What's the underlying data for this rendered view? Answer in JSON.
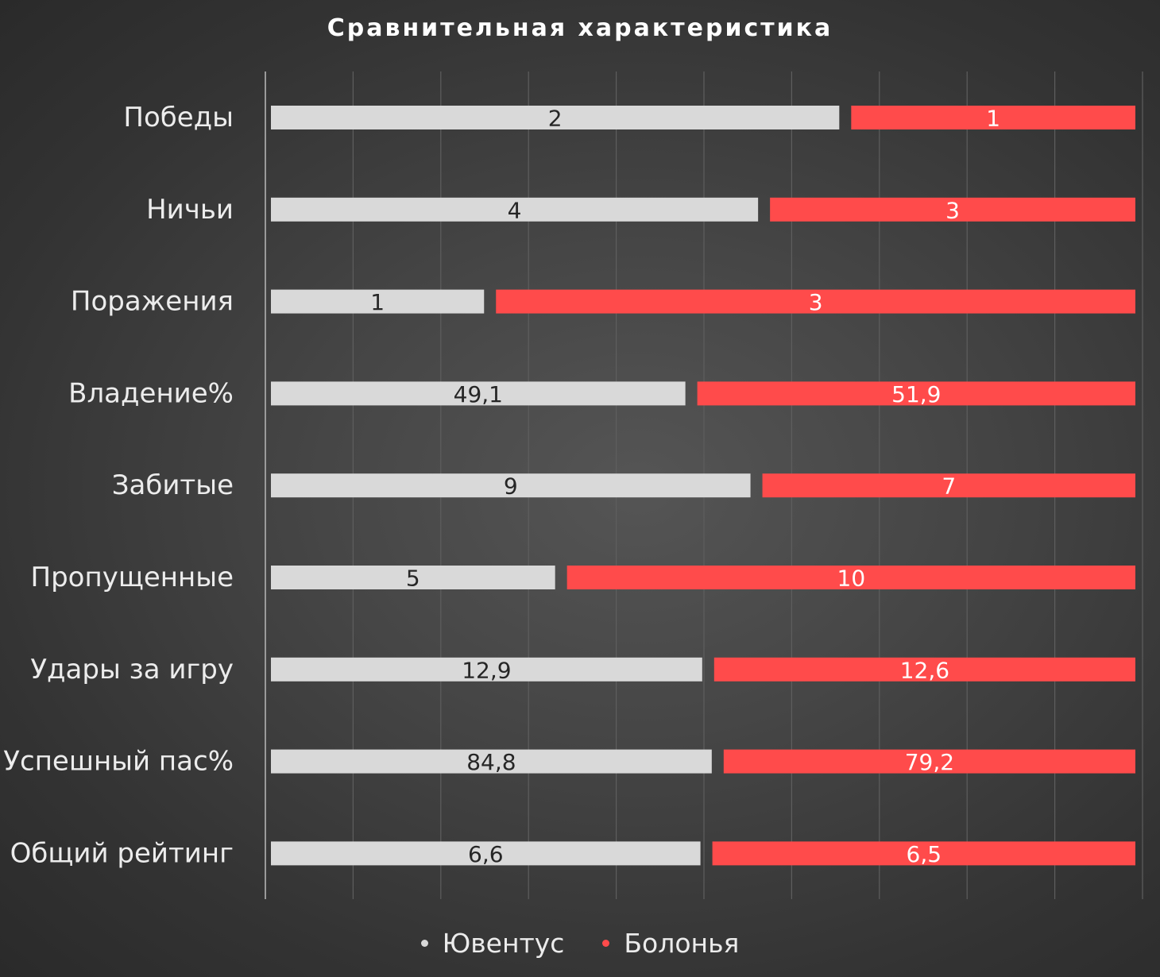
{
  "chart_data": {
    "type": "bar",
    "orientation": "horizontal",
    "stacking": "percent",
    "title": "Сравнительная характеристика",
    "categories": [
      "Победы",
      "Ничьи",
      "Поражения",
      "Владение%",
      "Забитые",
      "Пропущенные",
      "Удары за игру",
      "Успешный пас%",
      "Общий рейтинг"
    ],
    "series": [
      {
        "name": "Ювентус",
        "values": [
          2,
          4,
          1,
          49.1,
          9,
          5,
          12.9,
          84.8,
          6.6
        ],
        "labels": [
          "2",
          "4",
          "1",
          "49,1",
          "9",
          "5",
          "12,9",
          "84,8",
          "6,6"
        ],
        "color": "#d9d9d9",
        "label_color": "#262626"
      },
      {
        "name": "Болонья",
        "values": [
          1,
          3,
          3,
          51.9,
          7,
          10,
          12.6,
          79.2,
          6.5
        ],
        "labels": [
          "1",
          "3",
          "3",
          "51,9",
          "7",
          "10",
          "12,6",
          "79,2",
          "6,5"
        ],
        "color": "#ff4b4b",
        "label_color": "#ffffff"
      }
    ],
    "grid": true,
    "legend_position": "bottom"
  }
}
